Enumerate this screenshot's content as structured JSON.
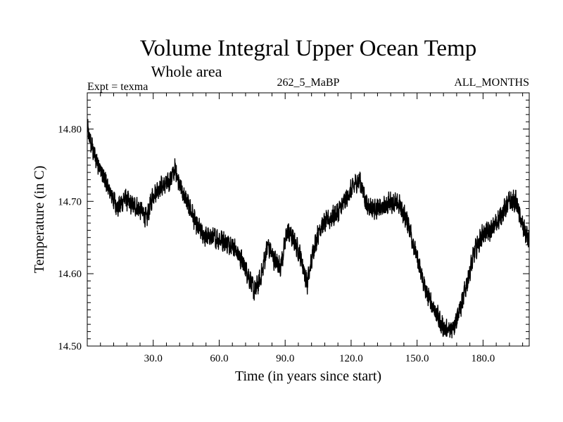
{
  "chart_data": {
    "type": "line",
    "title": "Volume Integral Upper Ocean Temp",
    "subtitle": "Whole area",
    "experiment_label": "Expt = texma",
    "center_label": "262_5_MaBP",
    "right_label": "ALL_MONTHS",
    "xlabel": "Time (in years since start)",
    "ylabel": "Temperature (in C)",
    "xlim": [
      0,
      201
    ],
    "ylim": [
      14.5,
      14.85
    ],
    "x_ticks": [
      30,
      60,
      90,
      120,
      150,
      180
    ],
    "x_tick_labels": [
      "30.0",
      "60.0",
      "90.0",
      "120.0",
      "150.0",
      "180.0"
    ],
    "y_ticks": [
      14.5,
      14.6,
      14.7,
      14.8
    ],
    "y_tick_labels": [
      "14.50",
      "14.60",
      "14.70",
      "14.80"
    ],
    "grid": false,
    "line_color": "#000000",
    "noise_amplitude": 0.012,
    "x": [
      0,
      3,
      6,
      10,
      14,
      17,
      20,
      24,
      27,
      30,
      33,
      37,
      40,
      43,
      46,
      50,
      54,
      58,
      62,
      66,
      70,
      73,
      76,
      79,
      82,
      85,
      88,
      91,
      94,
      97,
      100,
      103,
      106,
      110,
      114,
      118,
      122,
      124,
      127,
      130,
      134,
      138,
      142,
      146,
      150,
      154,
      158,
      161,
      164,
      167,
      170,
      173,
      176,
      180,
      184,
      188,
      192,
      195,
      198,
      201
    ],
    "values": [
      14.8,
      14.765,
      14.745,
      14.715,
      14.69,
      14.705,
      14.695,
      14.69,
      14.675,
      14.71,
      14.72,
      14.725,
      14.745,
      14.715,
      14.695,
      14.665,
      14.65,
      14.65,
      14.645,
      14.64,
      14.62,
      14.6,
      14.575,
      14.595,
      14.64,
      14.62,
      14.61,
      14.66,
      14.645,
      14.625,
      14.585,
      14.635,
      14.665,
      14.675,
      14.685,
      14.705,
      14.725,
      14.73,
      14.695,
      14.69,
      14.69,
      14.7,
      14.695,
      14.67,
      14.62,
      14.575,
      14.55,
      14.53,
      14.52,
      14.53,
      14.555,
      14.59,
      14.63,
      14.655,
      14.66,
      14.68,
      14.7,
      14.7,
      14.665,
      14.645
    ]
  }
}
